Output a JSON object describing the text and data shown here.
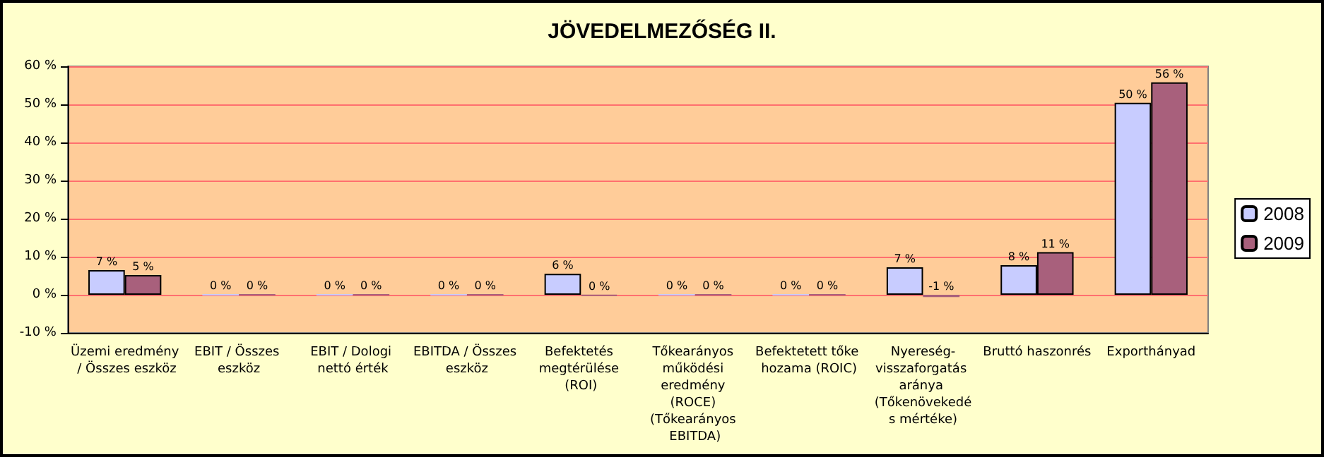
{
  "chart_data": {
    "type": "bar",
    "title": "JÖVEDELMEZŐSÉG II.",
    "categories": [
      "Üzemi eredmény / Összes eszköz",
      "EBIT / Összes eszköz",
      "EBIT / Dologi nettó érték",
      "EBITDA / Összes eszköz",
      "Befektetés megtérülése (ROI)",
      "Tőkearányos működési eredmény (ROCE) (Tőkearányos EBITDA)",
      "Befektetett tőke hozama (ROIC)",
      "Nyereség-visszaforgatás aránya (Tőkenövekedés mértéke)",
      "Bruttó haszonrés",
      "Exporthányad"
    ],
    "series": [
      {
        "name": "2008",
        "color": "#c8ccff",
        "values": [
          6.5,
          0,
          0,
          0,
          5.5,
          0,
          0,
          7.2,
          7.8,
          50.4
        ],
        "value_labels": [
          "7 %",
          "0 %",
          "0 %",
          "0 %",
          "6 %",
          "0 %",
          "0 %",
          "7 %",
          "8 %",
          "50 %"
        ]
      },
      {
        "name": "2009",
        "color": "#a8607c",
        "values": [
          5.2,
          0,
          0,
          0,
          -0.3,
          0,
          0,
          -0.6,
          11.2,
          55.8
        ],
        "value_labels": [
          "5 %",
          "0 %",
          "0 %",
          "0 %",
          "0 %",
          "0 %",
          "0 %",
          "-1 %",
          "11 %",
          "56 %"
        ]
      }
    ],
    "ylim": [
      -10,
      60
    ],
    "yticks": [
      {
        "value": -10,
        "label": "-10 %"
      },
      {
        "value": 0,
        "label": "0 %"
      },
      {
        "value": 10,
        "label": "10 %"
      },
      {
        "value": 20,
        "label": "20 %"
      },
      {
        "value": 30,
        "label": "30 %"
      },
      {
        "value": 40,
        "label": "40 %"
      },
      {
        "value": 50,
        "label": "50 %"
      },
      {
        "value": 60,
        "label": "60 %"
      }
    ],
    "grid": "y",
    "legend": "right"
  }
}
